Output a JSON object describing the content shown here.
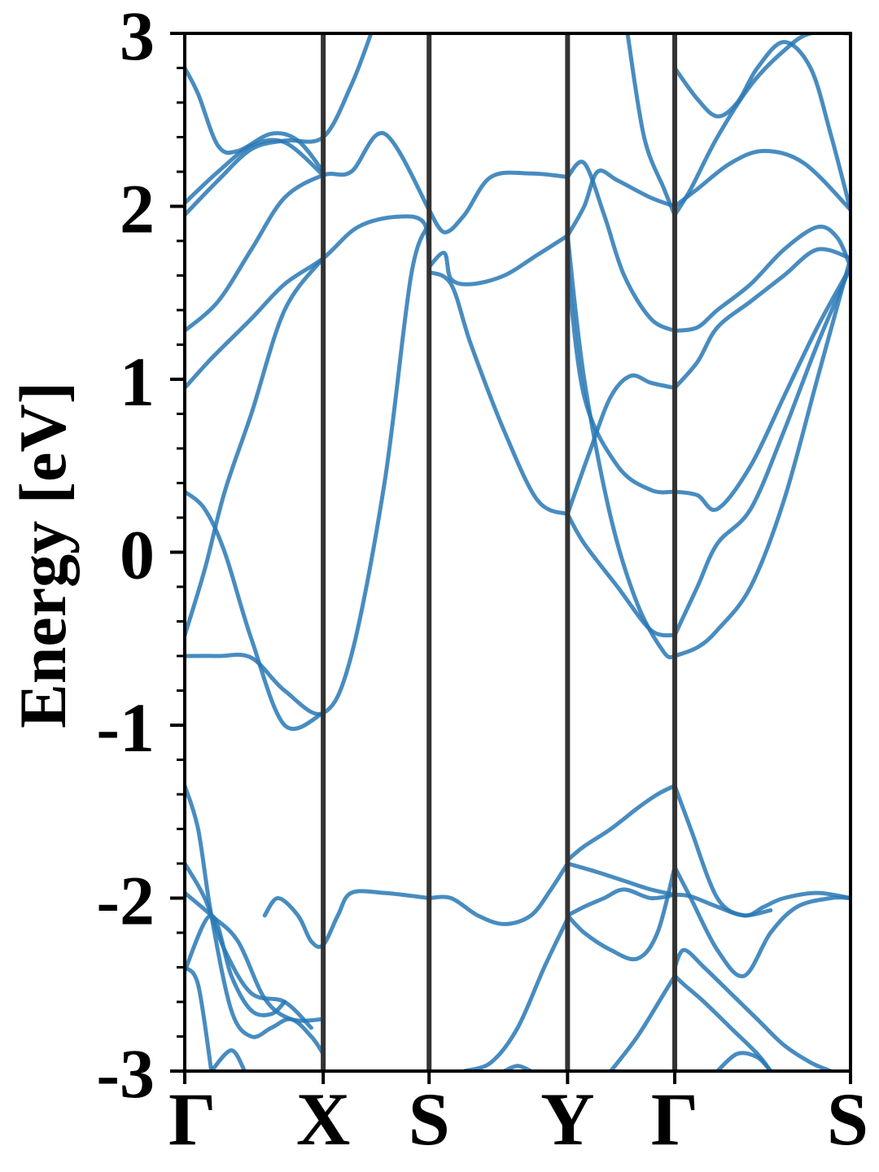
{
  "chart_data": {
    "type": "line",
    "title": "",
    "xlabel": "",
    "ylabel": "Energy [eV]",
    "ylim": [
      -3,
      3
    ],
    "yticks": [
      "3",
      "2",
      "1",
      "0",
      "-1",
      "-2",
      "-3"
    ],
    "kpath": [
      {
        "label": "Γ",
        "k": 0.0
      },
      {
        "label": "X",
        "k": 0.208
      },
      {
        "label": "S",
        "k": 0.367
      },
      {
        "label": "Y",
        "k": 0.575
      },
      {
        "label": "Γ",
        "k": 0.736
      },
      {
        "label": "S",
        "k": 1.0
      }
    ],
    "grid": false,
    "band_color": "#2878b5",
    "divider_color": "#333333",
    "series": [
      {
        "k": [
          0,
          0.05,
          0.1,
          0.15,
          0.208,
          0.25,
          0.3,
          0.34,
          0.367
        ],
        "values": [
          -0.6,
          -0.6,
          -0.61,
          -0.8,
          -0.93,
          -0.6,
          0.4,
          1.6,
          1.9
        ]
      },
      {
        "k": [
          0,
          0.03,
          0.06,
          0.1,
          0.15,
          0.208
        ],
        "values": [
          -0.48,
          -0.1,
          0.35,
          0.8,
          1.4,
          1.7
        ]
      },
      {
        "k": [
          0,
          0.03,
          0.06,
          0.1,
          0.15,
          0.208
        ],
        "values": [
          0.35,
          0.25,
          0.0,
          -0.5,
          -1.0,
          -0.93
        ]
      },
      {
        "k": [
          0,
          0.04,
          0.1,
          0.15,
          0.208,
          0.26,
          0.32,
          0.36,
          0.367
        ],
        "values": [
          0.95,
          1.12,
          1.35,
          1.55,
          1.7,
          1.88,
          1.94,
          1.9,
          1.65
        ]
      },
      {
        "k": [
          0,
          0.05,
          0.1,
          0.15,
          0.208,
          0.25,
          0.3,
          0.367
        ],
        "values": [
          1.28,
          1.45,
          1.75,
          2.05,
          2.18,
          2.2,
          2.42,
          1.98
        ]
      },
      {
        "k": [
          0,
          0.05,
          0.1,
          0.15,
          0.208,
          0.25,
          0.28
        ],
        "values": [
          1.95,
          2.15,
          2.33,
          2.38,
          2.4,
          2.7,
          3.0
        ]
      },
      {
        "k": [
          0,
          0.05,
          0.1,
          0.15,
          0.208
        ],
        "values": [
          2.02,
          2.2,
          2.35,
          2.37,
          2.18
        ]
      },
      {
        "k": [
          0,
          0.02,
          0.05,
          0.08,
          0.13,
          0.17,
          0.208
        ],
        "values": [
          2.8,
          2.65,
          2.35,
          2.32,
          2.42,
          2.38,
          2.2
        ]
      },
      {
        "k": [
          0.367,
          0.39,
          0.42,
          0.46,
          0.52,
          0.575
        ],
        "values": [
          1.98,
          1.85,
          1.95,
          2.17,
          2.19,
          2.17
        ]
      },
      {
        "k": [
          0.367,
          0.39,
          0.4,
          0.43,
          0.48,
          0.53,
          0.575
        ],
        "values": [
          1.65,
          1.73,
          1.58,
          1.55,
          1.6,
          1.72,
          1.83
        ]
      },
      {
        "k": [
          0.367,
          0.4,
          0.43,
          0.48,
          0.53,
          0.575
        ],
        "values": [
          1.62,
          1.55,
          1.2,
          0.7,
          0.3,
          0.22
        ]
      },
      {
        "k": [
          0.575,
          0.6,
          0.63,
          0.66,
          0.7,
          0.736
        ],
        "values": [
          2.17,
          2.25,
          1.95,
          1.6,
          1.35,
          1.28
        ]
      },
      {
        "k": [
          0.575,
          0.6,
          0.64,
          0.68,
          0.72,
          0.736
        ],
        "values": [
          1.83,
          1.0,
          0.2,
          -0.3,
          -0.58,
          -0.6
        ]
      },
      {
        "k": [
          0.575,
          0.6,
          0.65,
          0.7,
          0.736
        ],
        "values": [
          1.65,
          0.9,
          0.5,
          0.36,
          0.35
        ]
      },
      {
        "k": [
          0.575,
          0.61,
          0.64,
          0.67,
          0.7,
          0.736
        ],
        "values": [
          0.22,
          0.6,
          0.9,
          1.02,
          0.98,
          0.95
        ]
      },
      {
        "k": [
          0.575,
          0.6,
          0.65,
          0.7,
          0.736
        ],
        "values": [
          0.22,
          0.05,
          -0.2,
          -0.45,
          -0.48
        ]
      },
      {
        "k": [
          0.575,
          0.6,
          0.62,
          0.65,
          0.7,
          0.736
        ],
        "values": [
          1.83,
          2.0,
          2.2,
          2.15,
          2.05,
          2.0
        ]
      },
      {
        "k": [
          0.665,
          0.69,
          0.72,
          0.736
        ],
        "values": [
          3.0,
          2.4,
          2.1,
          1.95
        ]
      },
      {
        "k": [
          0.736,
          0.77,
          0.82,
          0.87,
          0.93,
          1.0
        ],
        "values": [
          2.0,
          2.1,
          2.25,
          2.32,
          2.25,
          1.98
        ]
      },
      {
        "k": [
          0.736,
          0.76,
          0.8,
          0.85,
          0.9,
          0.94,
          1.0
        ],
        "values": [
          1.95,
          2.1,
          2.4,
          2.7,
          2.9,
          3.0,
          3.0
        ]
      },
      {
        "k": [
          0.736,
          0.77,
          0.8,
          0.83,
          0.86,
          0.9,
          0.94,
          0.97,
          1.0
        ],
        "values": [
          2.8,
          2.62,
          2.52,
          2.6,
          2.8,
          2.95,
          2.8,
          2.42,
          1.98
        ]
      },
      {
        "k": [
          0.736,
          0.77,
          0.8,
          0.85,
          0.9,
          0.95,
          0.98,
          1.0
        ],
        "values": [
          1.28,
          1.3,
          1.4,
          1.55,
          1.75,
          1.88,
          1.82,
          1.65
        ]
      },
      {
        "k": [
          0.736,
          0.77,
          0.8,
          0.85,
          0.9,
          0.95,
          1.0
        ],
        "values": [
          0.95,
          1.1,
          1.3,
          1.45,
          1.6,
          1.75,
          1.7
        ]
      },
      {
        "k": [
          0.736,
          0.77,
          0.8,
          0.85,
          0.9,
          0.95,
          1.0
        ],
        "values": [
          0.35,
          0.33,
          0.25,
          0.5,
          0.9,
          1.3,
          1.65
        ]
      },
      {
        "k": [
          0.736,
          0.77,
          0.8,
          0.85,
          0.9,
          0.95,
          1.0
        ],
        "values": [
          -0.48,
          -0.2,
          0.05,
          0.25,
          0.7,
          1.2,
          1.65
        ]
      },
      {
        "k": [
          0.736,
          0.77,
          0.8,
          0.85,
          0.9,
          0.95,
          1.0
        ],
        "values": [
          -0.6,
          -0.55,
          -0.45,
          -0.2,
          0.3,
          1.0,
          1.7
        ]
      },
      {
        "k": [
          0,
          0.02,
          0.04,
          0.07,
          0.1,
          0.13,
          0.16,
          0.19,
          0.208
        ],
        "values": [
          -1.35,
          -1.6,
          -2.1,
          -2.65,
          -2.8,
          -2.75,
          -2.7,
          -2.8,
          -2.9
        ]
      },
      {
        "k": [
          0,
          0.03,
          0.06,
          0.1,
          0.15,
          0.19
        ],
        "values": [
          -1.8,
          -2.0,
          -2.3,
          -2.55,
          -2.6,
          -2.75
        ]
      },
      {
        "k": [
          0,
          0.04,
          0.07,
          0.1,
          0.13,
          0.15
        ],
        "values": [
          -2.42,
          -2.1,
          -2.45,
          -2.65,
          -2.67,
          -2.6
        ]
      },
      {
        "k": [
          0,
          0.04,
          0.08,
          0.12,
          0.16,
          0.208
        ],
        "values": [
          -1.97,
          -2.1,
          -2.25,
          -2.58,
          -2.7,
          -2.7
        ]
      },
      {
        "k": [
          0.12,
          0.14,
          0.17,
          0.19,
          0.208,
          0.23,
          0.25,
          0.3,
          0.367
        ],
        "values": [
          -2.1,
          -2.0,
          -2.1,
          -2.25,
          -2.27,
          -2.1,
          -1.97,
          -1.97,
          -2.0
        ]
      },
      {
        "k": [
          0.367,
          0.4,
          0.44,
          0.48,
          0.52,
          0.55,
          0.575
        ],
        "values": [
          -2.0,
          -2.0,
          -2.1,
          -2.15,
          -2.1,
          -1.95,
          -1.8
        ]
      },
      {
        "k": [
          0.575,
          0.62,
          0.66,
          0.7,
          0.736
        ],
        "values": [
          -1.8,
          -1.85,
          -1.9,
          -1.95,
          -1.98
        ]
      },
      {
        "k": [
          0.575,
          0.6,
          0.64,
          0.68,
          0.71,
          0.736
        ],
        "values": [
          -1.78,
          -1.7,
          -1.6,
          -1.48,
          -1.4,
          -1.35
        ]
      },
      {
        "k": [
          0.575,
          0.6,
          0.63,
          0.66,
          0.7,
          0.736
        ],
        "values": [
          -2.1,
          -2.05,
          -2.0,
          -1.95,
          -2.0,
          -1.98
        ]
      },
      {
        "k": [
          0.575,
          0.6,
          0.64,
          0.68,
          0.71,
          0.736
        ],
        "values": [
          -2.1,
          -2.2,
          -2.3,
          -2.35,
          -2.2,
          -1.82
        ]
      },
      {
        "k": [
          0.736,
          0.76,
          0.8,
          0.84,
          0.87,
          0.9,
          0.95,
          1.0
        ],
        "values": [
          -1.35,
          -1.6,
          -2.0,
          -2.1,
          -2.05,
          -2.0,
          -1.97,
          -2.0
        ]
      },
      {
        "k": [
          0.736,
          0.76,
          0.8,
          0.84,
          0.88,
          0.92,
          0.97,
          1.0
        ],
        "values": [
          -1.82,
          -2.0,
          -2.3,
          -2.45,
          -2.2,
          -2.05,
          -2.0,
          -2.0
        ]
      },
      {
        "k": [
          0.736,
          0.76,
          0.8,
          0.84,
          0.88
        ],
        "values": [
          -1.98,
          -1.99,
          -2.05,
          -2.1,
          -2.07
        ]
      },
      {
        "k": [
          0.736,
          0.75,
          0.78,
          0.82,
          0.86,
          0.9,
          0.94,
          0.97
        ],
        "values": [
          -2.4,
          -2.3,
          -2.4,
          -2.55,
          -2.7,
          -2.85,
          -2.95,
          -3.0
        ]
      },
      {
        "k": [
          0.736,
          0.75,
          0.78,
          0.82,
          0.86,
          0.88
        ],
        "values": [
          -2.45,
          -2.5,
          -2.6,
          -2.75,
          -2.9,
          -3.0
        ]
      },
      {
        "k": [
          0.42,
          0.46,
          0.5,
          0.54,
          0.575
        ],
        "values": [
          -3.0,
          -2.95,
          -2.75,
          -2.4,
          -2.12
        ]
      },
      {
        "k": [
          0.64,
          0.68,
          0.72,
          0.736
        ],
        "values": [
          -3.0,
          -2.8,
          -2.55,
          -2.45
        ]
      },
      {
        "k": [
          0.0,
          0.02,
          0.04
        ],
        "values": [
          -2.4,
          -2.5,
          -3.0
        ]
      },
      {
        "k": [
          0.04,
          0.07,
          0.09
        ],
        "values": [
          -3.0,
          -2.88,
          -3.0
        ]
      },
      {
        "k": [
          0.48,
          0.5,
          0.52
        ],
        "values": [
          -3.0,
          -2.97,
          -3.0
        ]
      },
      {
        "k": [
          0.8,
          0.83,
          0.86,
          0.88
        ],
        "values": [
          -3.0,
          -2.9,
          -2.92,
          -3.0
        ]
      }
    ]
  }
}
